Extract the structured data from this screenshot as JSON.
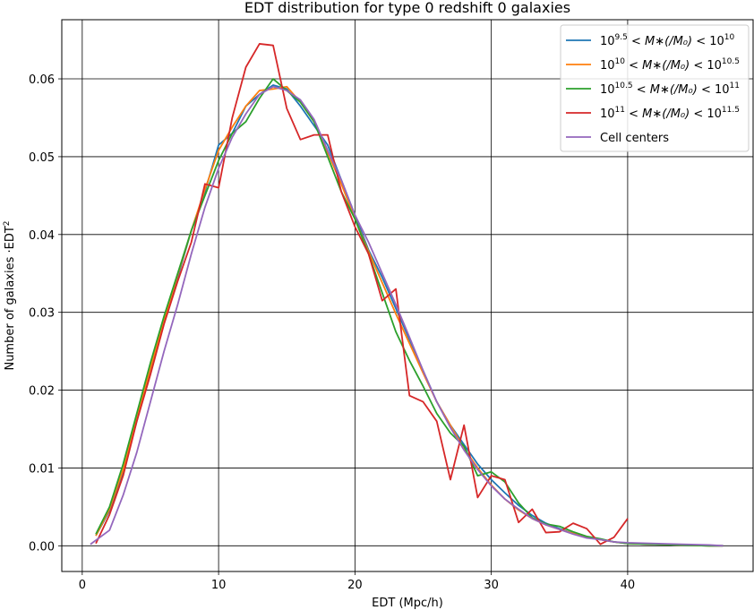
{
  "chart_data": {
    "type": "line",
    "title": "EDT distribution for type 0 redshift 0 galaxies",
    "xlabel": "EDT (Mpc/h)",
    "ylabel": "Number of galaxies ·EDT²",
    "xlim": [
      -1.5,
      49.2
    ],
    "ylim": [
      -0.0033,
      0.0676
    ],
    "xticks": [
      0,
      10,
      20,
      30,
      40
    ],
    "yticks": [
      0.0,
      0.01,
      0.02,
      0.03,
      0.04,
      0.05,
      0.06
    ],
    "ytick_labels": [
      "0.00",
      "0.01",
      "0.02",
      "0.03",
      "0.04",
      "0.05",
      "0.06"
    ],
    "grid": true,
    "legend_position": "top-right",
    "series": [
      {
        "name": "10^{9.5} < M_*(/M_0) < 10^{10}",
        "legend": {
          "base1": "10",
          "exp1": "9.5",
          "mid": " < M∗(/M₀) < ",
          "base2": "10",
          "exp2": "10"
        },
        "color": "#1f77b4",
        "x": [
          1,
          2,
          3,
          4,
          5,
          6,
          7,
          8,
          9,
          10,
          11,
          12,
          13,
          14,
          15,
          16,
          17,
          18,
          19,
          20,
          21,
          22,
          23,
          24,
          25,
          26,
          27,
          28,
          29,
          30,
          31,
          32,
          33,
          34,
          35,
          36,
          37,
          38,
          39,
          40,
          42,
          44,
          46,
          47
        ],
        "y": [
          0.0013,
          0.0045,
          0.0095,
          0.016,
          0.0225,
          0.029,
          0.0345,
          0.0405,
          0.0455,
          0.0515,
          0.053,
          0.0565,
          0.058,
          0.0592,
          0.0587,
          0.0565,
          0.054,
          0.0515,
          0.047,
          0.0425,
          0.038,
          0.0345,
          0.0305,
          0.0265,
          0.0225,
          0.0185,
          0.0155,
          0.013,
          0.0105,
          0.0085,
          0.0068,
          0.0052,
          0.0039,
          0.0029,
          0.0022,
          0.0016,
          0.0011,
          0.0008,
          0.0005,
          0.0003,
          0.0002,
          0.0001,
          0.0,
          0.0
        ]
      },
      {
        "name": "10^{10} < M_*(/M_0) < 10^{10.5}",
        "legend": {
          "base1": "10",
          "exp1": "10",
          "mid": " < M∗(/M₀) < ",
          "base2": "10",
          "exp2": "10.5"
        },
        "color": "#ff7f0e",
        "x": [
          1,
          2,
          3,
          4,
          5,
          6,
          7,
          8,
          9,
          10,
          11,
          12,
          13,
          14,
          15,
          16,
          17,
          18,
          19,
          20,
          21,
          22,
          23,
          24,
          25,
          26,
          27,
          28,
          29,
          30,
          31,
          32,
          33,
          34,
          35,
          36,
          37,
          38,
          39,
          40,
          42,
          44,
          46,
          47
        ],
        "y": [
          0.0013,
          0.0047,
          0.0098,
          0.0165,
          0.0228,
          0.029,
          0.0348,
          0.0405,
          0.0458,
          0.0508,
          0.0538,
          0.0565,
          0.0585,
          0.0587,
          0.059,
          0.057,
          0.0545,
          0.0505,
          0.0465,
          0.042,
          0.0378,
          0.0338,
          0.0298,
          0.026,
          0.0222,
          0.0185,
          0.0155,
          0.0125,
          0.01,
          0.0078,
          0.006,
          0.0046,
          0.0035,
          0.0027,
          0.0021,
          0.0016,
          0.0011,
          0.0008,
          0.0005,
          0.0003,
          0.0002,
          0.0001,
          0.0,
          0.0
        ]
      },
      {
        "name": "10^{10.5} < M_*(/M_0) < 10^{11}",
        "legend": {
          "base1": "10",
          "exp1": "10.5",
          "mid": " < M∗(/M₀) < ",
          "base2": "10",
          "exp2": "11"
        },
        "color": "#2ca02c",
        "x": [
          1,
          2,
          3,
          4,
          5,
          6,
          7,
          8,
          9,
          10,
          11,
          12,
          13,
          14,
          15,
          16,
          17,
          18,
          19,
          20,
          21,
          22,
          23,
          24,
          25,
          26,
          27,
          28,
          29,
          30,
          31,
          32,
          33,
          34,
          35,
          36,
          37,
          38,
          39,
          40,
          42,
          44,
          46,
          47
        ],
        "y": [
          0.0015,
          0.005,
          0.0105,
          0.017,
          0.0235,
          0.0295,
          0.035,
          0.0405,
          0.045,
          0.0495,
          0.053,
          0.0545,
          0.0575,
          0.06,
          0.0585,
          0.057,
          0.0545,
          0.05,
          0.0455,
          0.042,
          0.0375,
          0.0325,
          0.0275,
          0.0238,
          0.0205,
          0.017,
          0.0145,
          0.0128,
          0.009,
          0.0095,
          0.0082,
          0.0055,
          0.0036,
          0.0028,
          0.0025,
          0.0018,
          0.0012,
          0.0009,
          0.0005,
          0.0003,
          0.0002,
          0.0001,
          0.0,
          0.0
        ]
      },
      {
        "name": "10^{11} < M_*(/M_0) < 10^{11.5}",
        "legend": {
          "base1": "10",
          "exp1": "11",
          "mid": " < M∗(/M₀) < ",
          "base2": "10",
          "exp2": "11.5"
        },
        "color": "#d62728",
        "x": [
          1,
          2,
          3,
          4,
          5,
          6,
          7,
          8,
          9,
          10,
          11,
          12,
          13,
          14,
          15,
          16,
          17,
          18,
          19,
          20,
          21,
          22,
          23,
          24,
          25,
          26,
          27,
          28,
          29,
          30,
          31,
          32,
          33,
          34,
          35,
          36,
          37,
          38,
          39,
          40
        ],
        "y": [
          0.0003,
          0.004,
          0.009,
          0.016,
          0.022,
          0.0285,
          0.034,
          0.039,
          0.0465,
          0.046,
          0.055,
          0.0615,
          0.0645,
          0.0643,
          0.0562,
          0.0522,
          0.0528,
          0.0528,
          0.0455,
          0.041,
          0.0375,
          0.0315,
          0.033,
          0.0193,
          0.0185,
          0.016,
          0.0085,
          0.0155,
          0.0062,
          0.009,
          0.0085,
          0.003,
          0.0047,
          0.0017,
          0.0018,
          0.0029,
          0.0022,
          0.0002,
          0.0011,
          0.0035
        ]
      },
      {
        "name": "Cell centers",
        "legend": {
          "plain": "Cell centers"
        },
        "color": "#9467bd",
        "x": [
          0.6,
          2,
          3,
          4,
          5,
          6,
          7,
          8,
          9,
          10,
          11,
          12,
          13,
          14,
          15,
          16,
          17,
          18,
          19,
          20,
          21,
          22,
          23,
          24,
          25,
          26,
          27,
          28,
          29,
          30,
          31,
          32,
          33,
          34,
          35,
          36,
          37,
          38,
          39,
          40,
          42,
          44,
          46,
          47
        ],
        "y": [
          0.0002,
          0.002,
          0.0065,
          0.012,
          0.0185,
          0.025,
          0.031,
          0.0375,
          0.0435,
          0.0485,
          0.0525,
          0.0555,
          0.058,
          0.059,
          0.0585,
          0.0573,
          0.0548,
          0.0508,
          0.047,
          0.0425,
          0.039,
          0.035,
          0.031,
          0.0268,
          0.0225,
          0.0185,
          0.0152,
          0.0123,
          0.0098,
          0.0077,
          0.006,
          0.0047,
          0.0035,
          0.0027,
          0.0021,
          0.0015,
          0.001,
          0.0008,
          0.0005,
          0.0004,
          0.0003,
          0.0002,
          0.0001,
          0.0
        ]
      }
    ]
  }
}
